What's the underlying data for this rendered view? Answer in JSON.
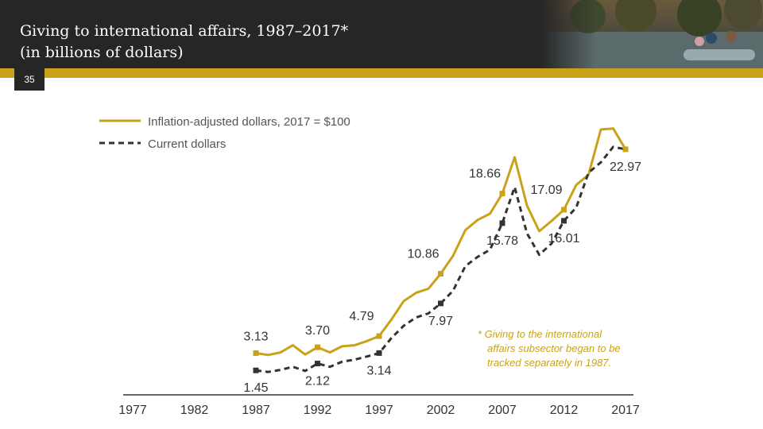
{
  "slide": {
    "title_line1": "Giving to international affairs, 1987–2017*",
    "title_line2": "(in billions of dollars)",
    "page_number": "35"
  },
  "colors": {
    "accent": "#c9a21a",
    "dark": "#262626",
    "current": "#333333"
  },
  "chart_data": {
    "type": "line",
    "title": "Giving to international affairs, 1987–2017* (in billions of dollars)",
    "x_ticks": [
      "1977",
      "1982",
      "1987",
      "1992",
      "1997",
      "2002",
      "2007",
      "2012",
      "2017"
    ],
    "xlim": [
      1977,
      2017
    ],
    "ylim": [
      0,
      30
    ],
    "grid": false,
    "legend_position": "top-left",
    "series": [
      {
        "name": "Inflation-adjusted dollars, 2017 = $100",
        "style": "solid",
        "color": "#c9a21a",
        "x": [
          1987,
          1988,
          1989,
          1990,
          1991,
          1992,
          1993,
          1994,
          1995,
          1996,
          1997,
          1998,
          1999,
          2000,
          2001,
          2002,
          2003,
          2004,
          2005,
          2006,
          2007,
          2008,
          2009,
          2010,
          2011,
          2012,
          2013,
          2014,
          2015,
          2016,
          2017
        ],
        "values": [
          3.13,
          2.95,
          3.2,
          3.9,
          3.0,
          3.7,
          3.2,
          3.8,
          3.9,
          4.3,
          4.79,
          6.4,
          8.2,
          9.0,
          9.4,
          10.86,
          12.6,
          15.1,
          16.1,
          16.7,
          18.66,
          22.2,
          17.5,
          15.0,
          16.0,
          17.09,
          19.5,
          20.5,
          24.9,
          25.0,
          22.97
        ]
      },
      {
        "name": "Current dollars",
        "style": "dashed",
        "color": "#333333",
        "x": [
          1987,
          1988,
          1989,
          1990,
          1991,
          1992,
          1993,
          1994,
          1995,
          1996,
          1997,
          1998,
          1999,
          2000,
          2001,
          2002,
          2003,
          2004,
          2005,
          2006,
          2007,
          2008,
          2009,
          2010,
          2011,
          2012,
          2013,
          2014,
          2015,
          2016,
          2017
        ],
        "values": [
          1.45,
          1.3,
          1.5,
          1.8,
          1.4,
          2.12,
          1.8,
          2.3,
          2.5,
          2.8,
          3.14,
          4.6,
          5.8,
          6.6,
          7.0,
          7.97,
          9.2,
          11.6,
          12.5,
          13.2,
          15.78,
          19.3,
          14.8,
          12.7,
          13.8,
          16.01,
          17.3,
          20.7,
          21.7,
          23.2,
          22.97
        ]
      }
    ],
    "point_labels": [
      {
        "series": 0,
        "x": 1987,
        "text": "3.13",
        "pos": "above"
      },
      {
        "series": 1,
        "x": 1987,
        "text": "1.45",
        "pos": "below"
      },
      {
        "series": 0,
        "x": 1992,
        "text": "3.70",
        "pos": "above"
      },
      {
        "series": 1,
        "x": 1992,
        "text": "2.12",
        "pos": "below"
      },
      {
        "series": 0,
        "x": 1997,
        "text": "4.79",
        "pos": "above-left"
      },
      {
        "series": 1,
        "x": 1997,
        "text": "3.14",
        "pos": "below"
      },
      {
        "series": 0,
        "x": 2002,
        "text": "10.86",
        "pos": "above-left"
      },
      {
        "series": 1,
        "x": 2002,
        "text": "7.97",
        "pos": "below"
      },
      {
        "series": 0,
        "x": 2007,
        "text": "18.66",
        "pos": "above-left"
      },
      {
        "series": 1,
        "x": 2007,
        "text": "15.78",
        "pos": "below"
      },
      {
        "series": 0,
        "x": 2012,
        "text": "17.09",
        "pos": "above-left"
      },
      {
        "series": 1,
        "x": 2012,
        "text": "16.01",
        "pos": "below"
      },
      {
        "series": 0,
        "x": 2017,
        "text": "22.97",
        "pos": "below"
      }
    ],
    "footnote": [
      "* Giving to the international",
      "affairs subsector began to be",
      "tracked separately in 1987."
    ]
  }
}
